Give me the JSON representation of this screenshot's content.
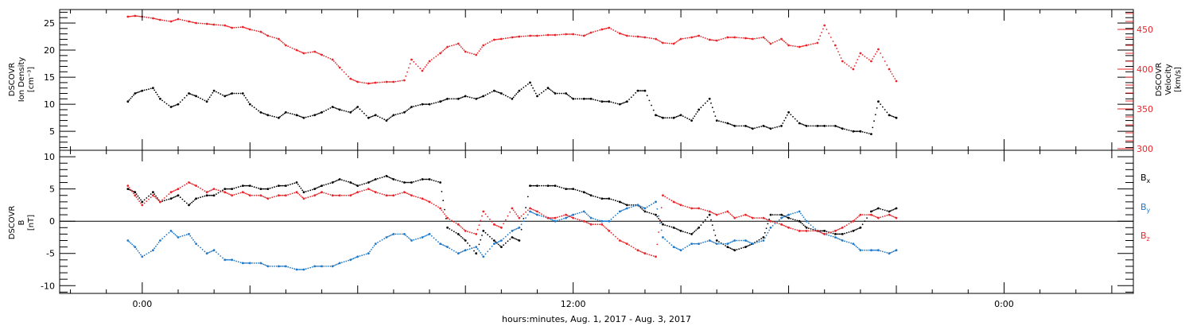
{
  "chart_data": [
    {
      "type": "scatter",
      "panel": "top",
      "left_axis": {
        "label_lines": [
          "DSCOVR",
          "Ion Density",
          "[cm⁻³]"
        ],
        "range": [
          1.5,
          27.5
        ],
        "ticks": [
          5,
          10,
          15,
          20,
          25
        ],
        "color": "#000000"
      },
      "right_axis": {
        "label_lines": [
          "DSCOVR",
          "Velocity",
          "[km/s]"
        ],
        "range": [
          298,
          475
        ],
        "ticks": [
          300,
          350,
          400,
          450
        ],
        "color": "#e8252a"
      },
      "series": [
        {
          "axis": "left",
          "color": "#000000",
          "x": [
            -0.4,
            -0.2,
            0.0,
            0.3,
            0.5,
            0.8,
            1.0,
            1.3,
            1.5,
            1.8,
            2.0,
            2.3,
            2.5,
            2.8,
            3.0,
            3.3,
            3.5,
            3.8,
            4.0,
            4.3,
            4.5,
            4.8,
            5.0,
            5.3,
            5.5,
            5.8,
            6.0,
            6.3,
            6.5,
            6.8,
            7.0,
            7.3,
            7.5,
            7.8,
            8.0,
            8.3,
            8.5,
            8.8,
            9.0,
            9.3,
            9.5,
            9.8,
            10.0,
            10.3,
            10.5,
            10.8,
            11.0,
            11.3,
            11.5,
            11.8,
            12.0,
            12.3,
            12.5,
            12.8,
            13.0,
            13.3,
            13.5,
            13.8,
            14.0,
            14.3,
            14.5,
            14.8,
            15.0,
            15.3,
            15.5,
            15.8,
            16.0,
            16.3,
            16.5,
            16.8,
            17.0,
            17.3,
            17.5,
            17.8,
            18.0,
            18.3,
            18.5,
            18.8,
            19.0,
            19.3,
            19.5,
            19.8,
            20.0,
            20.3,
            20.5,
            20.8,
            21.0
          ],
          "y": [
            10.5,
            12.0,
            12.5,
            13.0,
            11.0,
            9.5,
            10.0,
            12.0,
            11.5,
            10.5,
            12.5,
            11.5,
            12.0,
            12.0,
            10.0,
            8.5,
            8.0,
            7.5,
            8.5,
            8.0,
            7.5,
            8.0,
            8.5,
            9.5,
            9.0,
            8.5,
            9.5,
            7.5,
            8.0,
            7.0,
            8.0,
            8.5,
            9.5,
            10.0,
            10.0,
            10.5,
            11.0,
            11.0,
            11.5,
            11.0,
            11.5,
            12.5,
            12.0,
            11.0,
            12.5,
            14.0,
            11.5,
            13.0,
            12.0,
            12.0,
            11.0,
            11.0,
            11.0,
            10.5,
            10.5,
            10.0,
            10.5,
            12.5,
            12.5,
            8.0,
            7.5,
            7.5,
            8.0,
            7.0,
            9.0,
            11.0,
            7.0,
            6.5,
            6.0,
            6.0,
            5.5,
            6.0,
            5.5,
            6.0,
            8.5,
            6.5,
            6.0,
            6.0,
            6.0,
            6.0,
            5.5,
            5.0,
            5.0,
            4.5,
            10.5,
            8.0,
            7.5
          ]
        },
        {
          "axis": "right",
          "color": "#e8252a",
          "x": [
            -0.4,
            -0.2,
            0.0,
            0.3,
            0.5,
            0.8,
            1.0,
            1.3,
            1.5,
            1.8,
            2.0,
            2.3,
            2.5,
            2.8,
            3.0,
            3.3,
            3.5,
            3.8,
            4.0,
            4.3,
            4.5,
            4.8,
            5.0,
            5.3,
            5.5,
            5.8,
            6.0,
            6.3,
            6.5,
            6.8,
            7.0,
            7.3,
            7.5,
            7.8,
            8.0,
            8.3,
            8.5,
            8.8,
            9.0,
            9.3,
            9.5,
            9.8,
            10.0,
            10.3,
            10.5,
            10.8,
            11.0,
            11.3,
            11.5,
            11.8,
            12.0,
            12.3,
            12.5,
            12.8,
            13.0,
            13.3,
            13.5,
            13.8,
            14.0,
            14.3,
            14.5,
            14.8,
            15.0,
            15.3,
            15.5,
            15.8,
            16.0,
            16.3,
            16.5,
            16.8,
            17.0,
            17.3,
            17.5,
            17.8,
            18.0,
            18.3,
            18.5,
            18.8,
            19.0,
            19.3,
            19.5,
            19.8,
            20.0,
            20.3,
            20.5,
            20.8,
            21.0
          ],
          "y": [
            466,
            467,
            466,
            464,
            462,
            460,
            463,
            460,
            458,
            457,
            456,
            455,
            452,
            453,
            450,
            447,
            442,
            438,
            430,
            424,
            420,
            422,
            418,
            412,
            402,
            388,
            384,
            382,
            383,
            384,
            384,
            386,
            412,
            398,
            410,
            420,
            428,
            432,
            422,
            418,
            430,
            437,
            438,
            440,
            441,
            442,
            442,
            443,
            443,
            444,
            444,
            442,
            446,
            450,
            452,
            445,
            442,
            441,
            440,
            438,
            433,
            432,
            438,
            440,
            442,
            437,
            436,
            440,
            440,
            439,
            438,
            440,
            432,
            438,
            430,
            428,
            430,
            433,
            455,
            430,
            410,
            400,
            420,
            410,
            425,
            400,
            385
          ]
        }
      ]
    },
    {
      "type": "scatter",
      "panel": "bottom",
      "left_axis": {
        "label_lines": [
          "DSCOVR",
          "B",
          "[nT]"
        ],
        "range": [
          -11.2,
          11.0
        ],
        "ticks": [
          -10,
          -5,
          0,
          5,
          10
        ],
        "color": "#000000"
      },
      "zero_line": true,
      "legend": [
        {
          "label": "Bx",
          "base": "B",
          "sub": "x",
          "color": "#000000"
        },
        {
          "label": "By",
          "base": "B",
          "sub": "y",
          "color": "#1f78c8"
        },
        {
          "label": "Bz",
          "base": "B",
          "sub": "z",
          "color": "#e8252a"
        }
      ],
      "series": [
        {
          "name": "Bx",
          "color": "#000000",
          "x": [
            -0.4,
            -0.2,
            0.0,
            0.3,
            0.5,
            0.8,
            1.0,
            1.3,
            1.5,
            1.8,
            2.0,
            2.3,
            2.5,
            2.8,
            3.0,
            3.3,
            3.5,
            3.8,
            4.0,
            4.3,
            4.5,
            4.8,
            5.0,
            5.3,
            5.5,
            5.8,
            6.0,
            6.3,
            6.5,
            6.8,
            7.0,
            7.3,
            7.5,
            7.8,
            8.0,
            8.3,
            8.5,
            8.8,
            9.0,
            9.3,
            9.5,
            9.8,
            10.0,
            10.3,
            10.5,
            10.8,
            11.0,
            11.3,
            11.5,
            11.8,
            12.0,
            12.3,
            12.5,
            12.8,
            13.0,
            13.3,
            13.5,
            13.8,
            14.0,
            14.3,
            14.5,
            14.8,
            15.0,
            15.3,
            15.5,
            15.8,
            16.0,
            16.3,
            16.5,
            16.8,
            17.0,
            17.3,
            17.5,
            17.8,
            18.0,
            18.3,
            18.5,
            18.8,
            19.0,
            19.3,
            19.5,
            19.8,
            20.0,
            20.3,
            20.5,
            20.8,
            21.0
          ],
          "y": [
            5.0,
            4.5,
            3.0,
            4.5,
            3.0,
            3.5,
            4.0,
            2.5,
            3.5,
            4.0,
            4.0,
            5.0,
            5.0,
            5.5,
            5.5,
            5.0,
            5.0,
            5.5,
            5.5,
            6.0,
            4.5,
            5.0,
            5.5,
            6.0,
            6.5,
            6.0,
            5.5,
            6.0,
            6.5,
            7.0,
            6.5,
            6.0,
            6.0,
            6.5,
            6.5,
            6.0,
            -1.0,
            -2.0,
            -3.0,
            -5.0,
            -1.5,
            -3.0,
            -4.0,
            -2.5,
            -3.0,
            5.5,
            5.5,
            5.5,
            5.5,
            5.0,
            5.0,
            4.5,
            4.0,
            3.5,
            3.5,
            3.0,
            2.5,
            2.5,
            1.5,
            1.0,
            -0.5,
            -1.0,
            -1.5,
            -2.0,
            -1.0,
            1.0,
            -3.0,
            -4.0,
            -4.5,
            -4.0,
            -3.5,
            -2.5,
            1.0,
            1.0,
            0.5,
            0.0,
            -1.0,
            -1.5,
            -1.5,
            -2.0,
            -2.0,
            -1.5,
            -1.0,
            1.5,
            2.0,
            1.5,
            2.0
          ]
        },
        {
          "name": "By",
          "color": "#1f78c8",
          "x": [
            -0.4,
            -0.2,
            0.0,
            0.3,
            0.5,
            0.8,
            1.0,
            1.3,
            1.5,
            1.8,
            2.0,
            2.3,
            2.5,
            2.8,
            3.0,
            3.3,
            3.5,
            3.8,
            4.0,
            4.3,
            4.5,
            4.8,
            5.0,
            5.3,
            5.5,
            5.8,
            6.0,
            6.3,
            6.5,
            6.8,
            7.0,
            7.3,
            7.5,
            7.8,
            8.0,
            8.3,
            8.5,
            8.8,
            9.0,
            9.3,
            9.5,
            9.8,
            10.0,
            10.3,
            10.5,
            10.8,
            11.0,
            11.3,
            11.5,
            11.8,
            12.0,
            12.3,
            12.5,
            12.8,
            13.0,
            13.3,
            13.5,
            13.8,
            14.0,
            14.3,
            14.5,
            14.8,
            15.0,
            15.3,
            15.5,
            15.8,
            16.0,
            16.3,
            16.5,
            16.8,
            17.0,
            17.3,
            17.5,
            17.8,
            18.0,
            18.3,
            18.5,
            18.8,
            19.0,
            19.3,
            19.5,
            19.8,
            20.0,
            20.3,
            20.5,
            20.8,
            21.0
          ],
          "y": [
            -3.0,
            -4.0,
            -5.5,
            -4.5,
            -3.0,
            -1.5,
            -2.5,
            -2.0,
            -3.5,
            -5.0,
            -4.5,
            -6.0,
            -6.0,
            -6.5,
            -6.5,
            -6.5,
            -7.0,
            -7.0,
            -7.0,
            -7.5,
            -7.5,
            -7.0,
            -7.0,
            -7.0,
            -6.5,
            -6.0,
            -5.5,
            -5.0,
            -3.5,
            -2.5,
            -2.0,
            -2.0,
            -3.0,
            -2.5,
            -2.0,
            -3.5,
            -4.0,
            -5.0,
            -4.5,
            -4.0,
            -5.5,
            -3.5,
            -3.0,
            -1.5,
            -1.0,
            1.5,
            1.0,
            0.5,
            0.0,
            0.5,
            1.0,
            1.5,
            0.5,
            0.0,
            0.0,
            1.5,
            2.0,
            2.5,
            2.0,
            3.0,
            -2.5,
            -4.0,
            -4.5,
            -3.5,
            -3.5,
            -3.0,
            -3.5,
            -3.5,
            -3.0,
            -3.0,
            -3.5,
            -3.0,
            -1.0,
            0.5,
            1.0,
            1.5,
            0.0,
            -1.5,
            -2.0,
            -2.5,
            -3.0,
            -3.5,
            -4.5,
            -4.5,
            -4.5,
            -5.0,
            -4.5
          ]
        },
        {
          "name": "Bz",
          "color": "#e8252a",
          "x": [
            -0.4,
            -0.2,
            0.0,
            0.3,
            0.5,
            0.8,
            1.0,
            1.3,
            1.5,
            1.8,
            2.0,
            2.3,
            2.5,
            2.8,
            3.0,
            3.3,
            3.5,
            3.8,
            4.0,
            4.3,
            4.5,
            4.8,
            5.0,
            5.3,
            5.5,
            5.8,
            6.0,
            6.3,
            6.5,
            6.8,
            7.0,
            7.3,
            7.5,
            7.8,
            8.0,
            8.3,
            8.5,
            8.8,
            9.0,
            9.3,
            9.5,
            9.8,
            10.0,
            10.3,
            10.5,
            10.8,
            11.0,
            11.3,
            11.5,
            11.8,
            12.0,
            12.3,
            12.5,
            12.8,
            13.0,
            13.3,
            13.5,
            13.8,
            14.0,
            14.3,
            14.5,
            14.8,
            15.0,
            15.3,
            15.5,
            15.8,
            16.0,
            16.3,
            16.5,
            16.8,
            17.0,
            17.3,
            17.5,
            17.8,
            18.0,
            18.3,
            18.5,
            18.8,
            19.0,
            19.3,
            19.5,
            19.8,
            20.0,
            20.3,
            20.5,
            20.8,
            21.0
          ],
          "y": [
            5.5,
            4.0,
            2.5,
            4.0,
            3.0,
            4.5,
            5.0,
            6.0,
            5.5,
            4.5,
            5.0,
            4.5,
            4.0,
            4.5,
            4.0,
            4.0,
            3.5,
            4.0,
            4.0,
            4.5,
            3.5,
            4.0,
            4.5,
            4.0,
            4.0,
            4.0,
            4.5,
            5.0,
            4.5,
            4.0,
            4.0,
            4.5,
            4.0,
            3.5,
            3.0,
            2.0,
            0.5,
            -0.5,
            -1.5,
            -2.0,
            1.5,
            -0.5,
            -1.0,
            2.0,
            0.5,
            2.0,
            1.5,
            0.5,
            0.5,
            1.0,
            0.5,
            0.0,
            -0.5,
            -0.5,
            -1.5,
            -3.0,
            -3.5,
            -4.5,
            -5.0,
            -5.5,
            4.0,
            3.0,
            2.5,
            2.0,
            2.0,
            1.5,
            1.0,
            1.5,
            0.5,
            1.0,
            0.5,
            0.5,
            0.0,
            -0.5,
            -1.0,
            -1.5,
            -1.5,
            -1.5,
            -2.0,
            -1.5,
            -1.0,
            0.0,
            1.0,
            1.0,
            0.5,
            1.0,
            0.5
          ]
        }
      ]
    }
  ],
  "x_axis": {
    "range": [
      -2.3,
      27.6
    ],
    "labeled_ticks": [
      {
        "x": 0,
        "label": "0:00"
      },
      {
        "x": 12,
        "label": "12:00"
      },
      {
        "x": 24,
        "label": "0:00"
      }
    ],
    "title": "hours:minutes, Aug.  1, 2017 - Aug.  3, 2017"
  }
}
